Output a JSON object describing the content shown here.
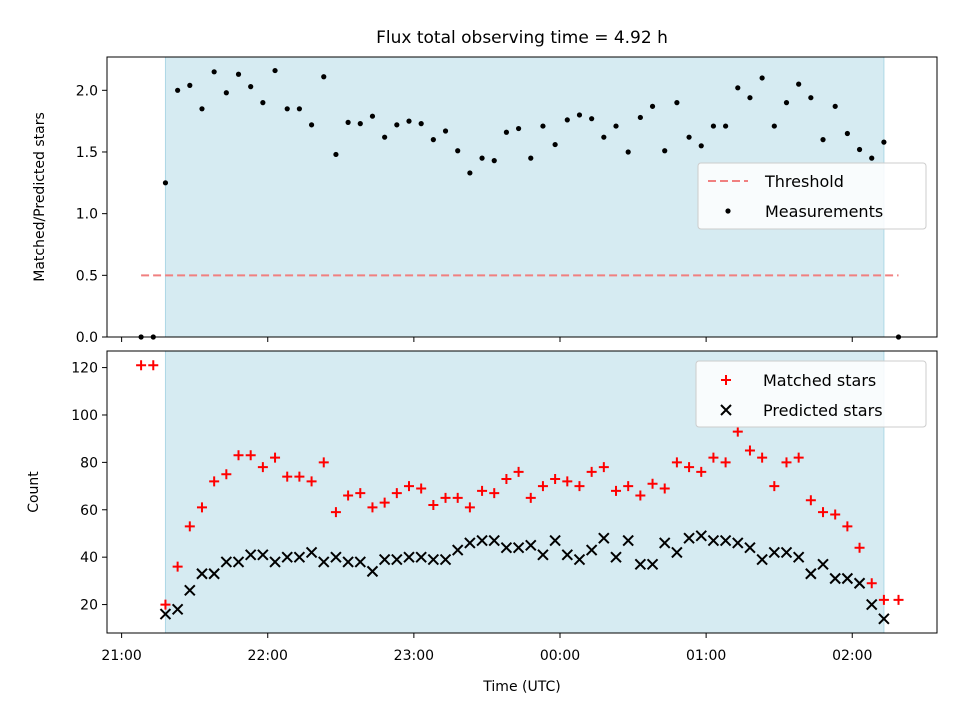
{
  "colors": {
    "observing_band": "#add8e6",
    "threshold": "#f08080",
    "measurement": "#000000",
    "matched": "#ff0000",
    "predicted": "#000000"
  },
  "chart_data": [
    {
      "type": "scatter",
      "title": "Flux total observing time = 4.92 h",
      "xlabel": "",
      "ylabel": "Matched/Predicted stars",
      "ylim": [
        0,
        2.27
      ],
      "yticks": [
        0.0,
        0.5,
        1.0,
        1.5,
        2.0
      ],
      "ytick_labels": [
        "0.0",
        "0.5",
        "1.0",
        "1.5",
        "2.0"
      ],
      "x_range_hours": [
        20.9,
        26.58
      ],
      "observing_band": {
        "start": "21:18",
        "end": "02:13"
      },
      "threshold": {
        "name": "Threshold",
        "value": 0.5,
        "x_start": "21:08",
        "x_end": "02:19"
      },
      "legend": {
        "position": "center-right",
        "entries": [
          "Threshold",
          "Measurements"
        ]
      },
      "series": [
        {
          "name": "Measurements",
          "points": [
            [
              "21:08",
              0
            ],
            [
              "21:13",
              0
            ],
            [
              "21:18",
              1.25
            ],
            [
              "21:23",
              2.0
            ],
            [
              "21:28",
              2.04
            ],
            [
              "21:33",
              1.85
            ],
            [
              "21:38",
              2.15
            ],
            [
              "21:43",
              1.98
            ],
            [
              "21:48",
              2.13
            ],
            [
              "21:53",
              2.03
            ],
            [
              "21:58",
              1.9
            ],
            [
              "22:03",
              2.16
            ],
            [
              "22:08",
              1.85
            ],
            [
              "22:13",
              1.85
            ],
            [
              "22:18",
              1.72
            ],
            [
              "22:23",
              2.11
            ],
            [
              "22:28",
              1.48
            ],
            [
              "22:33",
              1.74
            ],
            [
              "22:38",
              1.73
            ],
            [
              "22:43",
              1.79
            ],
            [
              "22:48",
              1.62
            ],
            [
              "22:53",
              1.72
            ],
            [
              "22:58",
              1.75
            ],
            [
              "23:03",
              1.73
            ],
            [
              "23:08",
              1.6
            ],
            [
              "23:13",
              1.67
            ],
            [
              "23:18",
              1.51
            ],
            [
              "23:23",
              1.33
            ],
            [
              "23:28",
              1.45
            ],
            [
              "23:33",
              1.43
            ],
            [
              "23:38",
              1.66
            ],
            [
              "23:43",
              1.69
            ],
            [
              "23:48",
              1.45
            ],
            [
              "23:53",
              1.71
            ],
            [
              "23:58",
              1.56
            ],
            [
              "00:03",
              1.76
            ],
            [
              "00:08",
              1.8
            ],
            [
              "00:13",
              1.77
            ],
            [
              "00:18",
              1.62
            ],
            [
              "00:23",
              1.71
            ],
            [
              "00:28",
              1.5
            ],
            [
              "00:33",
              1.78
            ],
            [
              "00:38",
              1.87
            ],
            [
              "00:43",
              1.51
            ],
            [
              "00:48",
              1.9
            ],
            [
              "00:53",
              1.62
            ],
            [
              "00:58",
              1.55
            ],
            [
              "01:03",
              1.71
            ],
            [
              "01:08",
              1.71
            ],
            [
              "01:13",
              2.02
            ],
            [
              "01:18",
              1.94
            ],
            [
              "01:23",
              2.1
            ],
            [
              "01:28",
              1.71
            ],
            [
              "01:33",
              1.9
            ],
            [
              "01:38",
              2.05
            ],
            [
              "01:43",
              1.94
            ],
            [
              "01:48",
              1.6
            ],
            [
              "01:53",
              1.87
            ],
            [
              "01:58",
              1.65
            ],
            [
              "02:03",
              1.52
            ],
            [
              "02:08",
              1.45
            ],
            [
              "02:13",
              1.58
            ],
            [
              "02:19",
              0
            ]
          ]
        }
      ]
    },
    {
      "type": "scatter",
      "title": "",
      "xlabel": "Time (UTC)",
      "ylabel": "Count",
      "ylim": [
        8,
        127
      ],
      "yticks": [
        20,
        40,
        60,
        80,
        100,
        120
      ],
      "ytick_labels": [
        "20",
        "40",
        "60",
        "80",
        "100",
        "120"
      ],
      "x_range_hours": [
        20.9,
        26.58
      ],
      "xtick_labels": [
        "21:00",
        "22:00",
        "23:00",
        "00:00",
        "01:00",
        "02:00"
      ],
      "observing_band": {
        "start": "21:18",
        "end": "02:13"
      },
      "legend": {
        "position": "top-right",
        "entries": [
          "Matched stars",
          "Predicted stars"
        ]
      },
      "series": [
        {
          "name": "Matched stars",
          "marker": "plus",
          "points": [
            [
              "21:08",
              121
            ],
            [
              "21:13",
              121
            ],
            [
              "21:18",
              20
            ],
            [
              "21:23",
              36
            ],
            [
              "21:28",
              53
            ],
            [
              "21:33",
              61
            ],
            [
              "21:38",
              72
            ],
            [
              "21:43",
              75
            ],
            [
              "21:48",
              83
            ],
            [
              "21:53",
              83
            ],
            [
              "21:58",
              78
            ],
            [
              "22:03",
              82
            ],
            [
              "22:08",
              74
            ],
            [
              "22:13",
              74
            ],
            [
              "22:18",
              72
            ],
            [
              "22:23",
              80
            ],
            [
              "22:28",
              59
            ],
            [
              "22:33",
              66
            ],
            [
              "22:38",
              67
            ],
            [
              "22:43",
              61
            ],
            [
              "22:48",
              63
            ],
            [
              "22:53",
              67
            ],
            [
              "22:58",
              70
            ],
            [
              "23:03",
              69
            ],
            [
              "23:08",
              62
            ],
            [
              "23:13",
              65
            ],
            [
              "23:18",
              65
            ],
            [
              "23:23",
              61
            ],
            [
              "23:28",
              68
            ],
            [
              "23:33",
              67
            ],
            [
              "23:38",
              73
            ],
            [
              "23:43",
              76
            ],
            [
              "23:48",
              65
            ],
            [
              "23:53",
              70
            ],
            [
              "23:58",
              73
            ],
            [
              "00:03",
              72
            ],
            [
              "00:08",
              70
            ],
            [
              "00:13",
              76
            ],
            [
              "00:18",
              78
            ],
            [
              "00:23",
              68
            ],
            [
              "00:28",
              70
            ],
            [
              "00:33",
              66
            ],
            [
              "00:38",
              71
            ],
            [
              "00:43",
              69
            ],
            [
              "00:48",
              80
            ],
            [
              "00:53",
              78
            ],
            [
              "00:58",
              76
            ],
            [
              "01:03",
              82
            ],
            [
              "01:08",
              80
            ],
            [
              "01:13",
              93
            ],
            [
              "01:18",
              85
            ],
            [
              "01:23",
              82
            ],
            [
              "01:28",
              70
            ],
            [
              "01:33",
              80
            ],
            [
              "01:38",
              82
            ],
            [
              "01:43",
              64
            ],
            [
              "01:48",
              59
            ],
            [
              "01:53",
              58
            ],
            [
              "01:58",
              53
            ],
            [
              "02:03",
              44
            ],
            [
              "02:08",
              29
            ],
            [
              "02:13",
              22
            ],
            [
              "02:19",
              22
            ]
          ]
        },
        {
          "name": "Predicted stars",
          "marker": "x",
          "points": [
            [
              "21:18",
              16
            ],
            [
              "21:23",
              18
            ],
            [
              "21:28",
              26
            ],
            [
              "21:33",
              33
            ],
            [
              "21:38",
              33
            ],
            [
              "21:43",
              38
            ],
            [
              "21:48",
              38
            ],
            [
              "21:53",
              41
            ],
            [
              "21:58",
              41
            ],
            [
              "22:03",
              38
            ],
            [
              "22:08",
              40
            ],
            [
              "22:13",
              40
            ],
            [
              "22:18",
              42
            ],
            [
              "22:23",
              38
            ],
            [
              "22:28",
              40
            ],
            [
              "22:33",
              38
            ],
            [
              "22:38",
              38
            ],
            [
              "22:43",
              34
            ],
            [
              "22:48",
              39
            ],
            [
              "22:53",
              39
            ],
            [
              "22:58",
              40
            ],
            [
              "23:03",
              40
            ],
            [
              "23:08",
              39
            ],
            [
              "23:13",
              39
            ],
            [
              "23:18",
              43
            ],
            [
              "23:23",
              46
            ],
            [
              "23:28",
              47
            ],
            [
              "23:33",
              47
            ],
            [
              "23:38",
              44
            ],
            [
              "23:43",
              44
            ],
            [
              "23:48",
              45
            ],
            [
              "23:53",
              41
            ],
            [
              "23:58",
              47
            ],
            [
              "00:03",
              41
            ],
            [
              "00:08",
              39
            ],
            [
              "00:13",
              43
            ],
            [
              "00:18",
              48
            ],
            [
              "00:23",
              40
            ],
            [
              "00:28",
              47
            ],
            [
              "00:33",
              37
            ],
            [
              "00:38",
              37
            ],
            [
              "00:43",
              46
            ],
            [
              "00:48",
              42
            ],
            [
              "00:53",
              48
            ],
            [
              "00:58",
              49
            ],
            [
              "01:03",
              47
            ],
            [
              "01:08",
              47
            ],
            [
              "01:13",
              46
            ],
            [
              "01:18",
              44
            ],
            [
              "01:23",
              39
            ],
            [
              "01:28",
              42
            ],
            [
              "01:33",
              42
            ],
            [
              "01:38",
              40
            ],
            [
              "01:43",
              33
            ],
            [
              "01:48",
              37
            ],
            [
              "01:53",
              31
            ],
            [
              "01:58",
              31
            ],
            [
              "02:03",
              29
            ],
            [
              "02:08",
              20
            ],
            [
              "02:13",
              14
            ]
          ]
        }
      ]
    }
  ]
}
